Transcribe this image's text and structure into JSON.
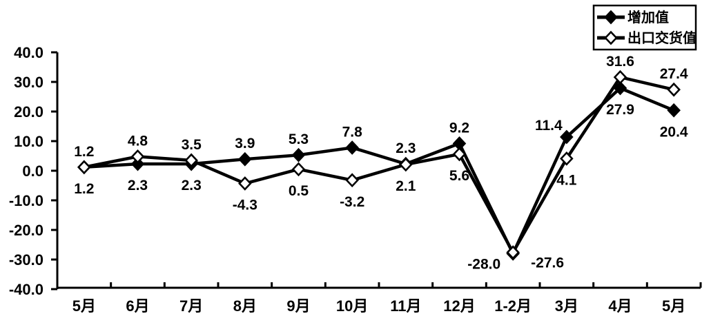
{
  "chart_data": {
    "type": "line",
    "title": "",
    "xlabel": "",
    "ylabel": "",
    "background": "#ffffff",
    "line_color": "#000000",
    "text_color": "#000000",
    "grid": false,
    "legend_position": "top-right",
    "ylim": [
      -40,
      40
    ],
    "ytick_step": 10,
    "ytick_labels": [
      "40.0",
      "30.0",
      "20.0",
      "10.0",
      "0.0",
      "-10.0",
      "-20.0",
      "-30.0",
      "-40.0"
    ],
    "categories": [
      "5月",
      "6月",
      "7月",
      "8月",
      "9月",
      "10月",
      "11月",
      "12月",
      "1-2月",
      "3月",
      "4月",
      "5月"
    ],
    "series": [
      {
        "name": "增加值",
        "marker": "filled-diamond",
        "values": [
          1.2,
          2.3,
          2.3,
          3.9,
          5.3,
          7.8,
          2.3,
          9.2,
          -28.0,
          11.4,
          27.9,
          20.4
        ],
        "label_positions": [
          "above",
          "below",
          "below",
          "above",
          "above",
          "above",
          "above",
          "above",
          "left",
          "aboveleft",
          "below",
          "below"
        ]
      },
      {
        "name": "出口交货值",
        "marker": "open-diamond",
        "values": [
          1.2,
          4.8,
          3.5,
          -4.3,
          0.5,
          -3.2,
          2.1,
          5.6,
          -27.6,
          4.1,
          31.6,
          27.4
        ],
        "label_positions": [
          "below",
          "above",
          "above",
          "below",
          "below",
          "below",
          "below",
          "below",
          "right",
          "below",
          "above",
          "above"
        ]
      }
    ]
  }
}
